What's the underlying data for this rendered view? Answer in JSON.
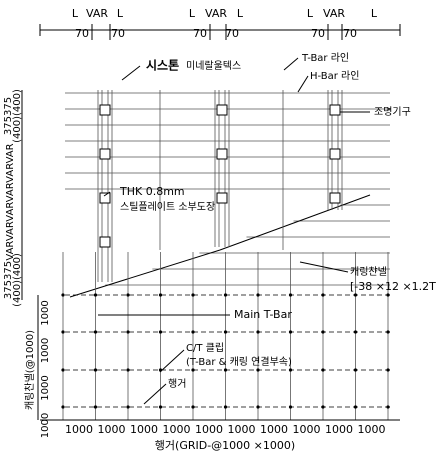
{
  "top_dimension": {
    "labels": [
      "L",
      "VAR",
      "L",
      "L",
      "VAR",
      "L",
      "L",
      "VAR",
      "L"
    ],
    "offsets": [
      "70",
      "70",
      "70",
      "70",
      "70",
      "70"
    ]
  },
  "left_dimension": {
    "upper": "375375",
    "upper_paren": "(400)(400)",
    "middle": "VARVARVARVARVARVAR",
    "lower": "375375",
    "lower_paren": "(400)(400)",
    "grid": [
      "1000",
      "1000",
      "1000",
      "1000"
    ],
    "grid_label": "캐링찬넬(@1000)"
  },
  "labels": {
    "material_bold": "시스톤",
    "material": "미네랄울텍스",
    "t_bar": "T-Bar 라인",
    "h_bar": "H-Bar 라인",
    "light": "조명기구",
    "plate_thk": "THK 0.8mm",
    "plate": "스틸플레이트 소부도장",
    "channel": "캐링챤넬",
    "channel_spec": "[-38 ×12 ×1.2T",
    "main_tbar": "Main T-Bar",
    "clip": "C/T 클립",
    "clip_desc": "(T-Bar & 캐링 연결부속)",
    "hanger": "행거"
  },
  "bottom_dimension": {
    "labels": [
      "1000",
      "1000",
      "1000",
      "1000",
      "1000",
      "1000",
      "1000",
      "1000",
      "1000",
      "1000"
    ],
    "caption": "행거(GRID-@1000 ×1000)"
  }
}
